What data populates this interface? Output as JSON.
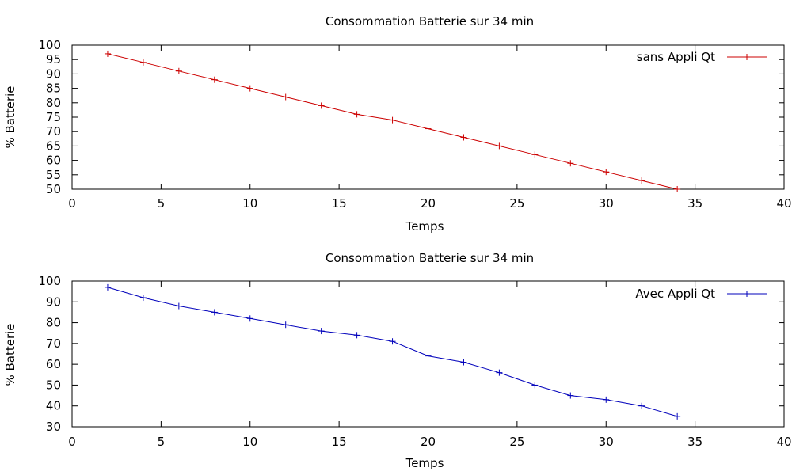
{
  "chart_data": [
    {
      "type": "line",
      "title": "Consommation Batterie sur 34 min",
      "xlabel": "Temps",
      "ylabel": "% Batterie",
      "xlim": [
        0,
        40
      ],
      "ylim": [
        50,
        100
      ],
      "xticks": [
        0,
        5,
        10,
        15,
        20,
        25,
        30,
        35,
        40
      ],
      "yticks": [
        50,
        55,
        60,
        65,
        70,
        75,
        80,
        85,
        90,
        95,
        100
      ],
      "legend_position": "top-right",
      "series": [
        {
          "name": "sans Appli Qt",
          "color": "#cc0000",
          "x": [
            2,
            4,
            6,
            8,
            10,
            12,
            14,
            16,
            18,
            20,
            22,
            24,
            26,
            28,
            30,
            32,
            34
          ],
          "y": [
            97,
            94,
            91,
            88,
            85,
            82,
            79,
            76,
            74,
            71,
            68,
            65,
            62,
            59,
            56,
            53,
            50
          ]
        }
      ]
    },
    {
      "type": "line",
      "title": "Consommation Batterie sur 34 min",
      "xlabel": "Temps",
      "ylabel": "% Batterie",
      "xlim": [
        0,
        40
      ],
      "ylim": [
        30,
        100
      ],
      "xticks": [
        0,
        5,
        10,
        15,
        20,
        25,
        30,
        35,
        40
      ],
      "yticks": [
        30,
        40,
        50,
        60,
        70,
        80,
        90,
        100
      ],
      "legend_position": "top-right",
      "series": [
        {
          "name": "Avec Appli Qt",
          "color": "#0000bb",
          "x": [
            2,
            4,
            6,
            8,
            10,
            12,
            14,
            16,
            18,
            20,
            22,
            24,
            26,
            28,
            30,
            32,
            34
          ],
          "y": [
            97,
            92,
            88,
            85,
            82,
            79,
            76,
            74,
            71,
            64,
            61,
            56,
            50,
            45,
            43,
            40,
            35
          ]
        }
      ]
    }
  ]
}
